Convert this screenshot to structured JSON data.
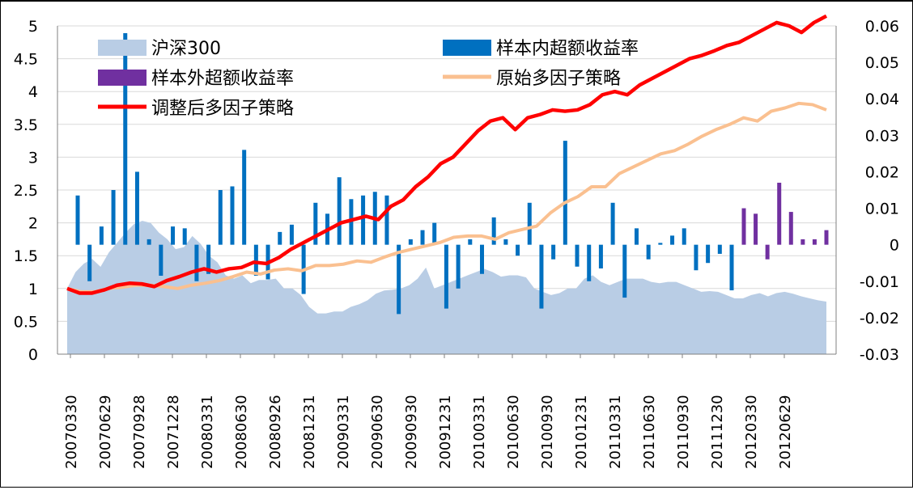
{
  "chart_data": {
    "type": "combo",
    "title": "",
    "xlabel": "",
    "ylabel": "",
    "y_left": {
      "min": 0,
      "max": 5,
      "step": 0.5,
      "ticks": [
        "0",
        "0.5",
        "1",
        "1.5",
        "2",
        "2.5",
        "3",
        "3.5",
        "4",
        "4.5",
        "5"
      ]
    },
    "y_right": {
      "min": -0.03,
      "max": 0.06,
      "step": 0.01,
      "ticks": [
        "-0.03",
        "-0.02",
        "-0.01",
        "0",
        "0.01",
        "0.02",
        "0.03",
        "0.04",
        "0.05",
        "0.06"
      ]
    },
    "grid": "horizontal",
    "x_tick_labels": [
      "20070330",
      "20070629",
      "20070928",
      "20071228",
      "20080331",
      "20080630",
      "20080926",
      "20081231",
      "20090331",
      "20090630",
      "20090930",
      "20091231",
      "20100331",
      "20100630",
      "20100930",
      "20101231",
      "20110331",
      "20110630",
      "20110930",
      "20111230",
      "20120330",
      "20120629"
    ],
    "legend": {
      "placement": "top-left",
      "items": [
        {
          "label": "沪深300",
          "type": "area",
          "color": "#b9cde5"
        },
        {
          "label": "样本内超额收益率",
          "type": "bar",
          "color": "#0070c0"
        },
        {
          "label": "样本外超额收益率",
          "type": "bar",
          "color": "#7030a0"
        },
        {
          "label": "原始多因子策略",
          "type": "line",
          "color": "#fac090"
        },
        {
          "label": "调整后多因子策略",
          "type": "line",
          "color": "#ff0000"
        }
      ]
    },
    "series": [
      {
        "name": "沪深300",
        "axis": "left",
        "type": "area",
        "color": "#b9cde5",
        "values": [
          1.0,
          1.25,
          1.38,
          1.45,
          1.33,
          1.55,
          1.7,
          1.85,
          1.98,
          2.03,
          2.0,
          1.85,
          1.75,
          1.6,
          1.63,
          1.8,
          1.68,
          1.5,
          1.4,
          1.2,
          1.15,
          1.2,
          1.08,
          1.13,
          1.13,
          1.15,
          1.0,
          1.0,
          0.9,
          0.72,
          0.62,
          0.62,
          0.65,
          0.65,
          0.72,
          0.76,
          0.82,
          0.92,
          0.97,
          0.98,
          1.0,
          1.05,
          1.15,
          1.32,
          1.0,
          1.05,
          1.1,
          1.15,
          1.2,
          1.25,
          1.3,
          1.25,
          1.18,
          1.2,
          1.2,
          1.17,
          1.0,
          0.95,
          0.9,
          0.93,
          1.0,
          1.0,
          1.15,
          1.2,
          1.1,
          1.05,
          1.1,
          1.15,
          1.15,
          1.15,
          1.1,
          1.08,
          1.1,
          1.1,
          1.05,
          1.0,
          0.95,
          0.96,
          0.95,
          0.9,
          0.85,
          0.85,
          0.9,
          0.93,
          0.88,
          0.93,
          0.95,
          0.92,
          0.88,
          0.85,
          0.82,
          0.8
        ]
      },
      {
        "name": "样本内超额收益率",
        "axis": "right",
        "type": "bar",
        "color": "#0070c0",
        "values": [
          0.0135,
          -0.01,
          0.005,
          0.015,
          0.058,
          0.02,
          0.0015,
          -0.0085,
          0.005,
          0.0045,
          -0.01,
          -0.008,
          0.015,
          0.016,
          0.026,
          -0.0085,
          -0.0095,
          0.0035,
          0.0055,
          -0.0135,
          0.0115,
          0.0085,
          0.0185,
          0.0125,
          0.0135,
          0.0145,
          0.0135,
          -0.019,
          0.0015,
          0.004,
          0.006,
          -0.0175,
          -0.012,
          0.0015,
          -0.008,
          0.0075,
          0.0015,
          -0.003,
          0.0115,
          -0.0175,
          -0.004,
          0.0285,
          -0.006,
          -0.01,
          -0.0065,
          0.0115,
          -0.0145,
          0.0045,
          -0.004,
          0.0005,
          0.0025,
          0.0045,
          -0.007,
          -0.005,
          -0.0025,
          -0.0125
        ]
      },
      {
        "name": "样本外超额收益率",
        "axis": "right",
        "type": "bar",
        "color": "#7030a0",
        "values": [
          0.01,
          0.0085,
          -0.004,
          0.017,
          0.009,
          0.0015,
          0.0015,
          0.004
        ]
      },
      {
        "name": "原始多因子策略",
        "axis": "left",
        "type": "line",
        "color": "#fac090",
        "values": [
          1.0,
          0.95,
          0.95,
          1.0,
          1.02,
          1.05,
          1.05,
          1.03,
          1.0,
          1.05,
          1.08,
          1.12,
          1.18,
          1.25,
          1.22,
          1.28,
          1.3,
          1.27,
          1.35,
          1.35,
          1.37,
          1.42,
          1.4,
          1.48,
          1.55,
          1.6,
          1.65,
          1.7,
          1.78,
          1.8,
          1.8,
          1.75,
          1.85,
          1.9,
          1.95,
          2.15,
          2.3,
          2.4,
          2.55,
          2.55,
          2.75,
          2.85,
          2.95,
          3.05,
          3.1,
          3.2,
          3.32,
          3.42,
          3.5,
          3.6,
          3.55,
          3.7,
          3.75,
          3.82,
          3.8,
          3.72
        ]
      },
      {
        "name": "调整后多因子策略",
        "axis": "left",
        "type": "line",
        "color": "#ff0000",
        "values": [
          1.0,
          0.93,
          0.93,
          0.98,
          1.05,
          1.08,
          1.07,
          1.03,
          1.12,
          1.18,
          1.25,
          1.3,
          1.25,
          1.3,
          1.32,
          1.4,
          1.38,
          1.47,
          1.6,
          1.7,
          1.8,
          1.9,
          2.0,
          2.05,
          2.1,
          2.05,
          2.25,
          2.35,
          2.55,
          2.7,
          2.9,
          3.0,
          3.2,
          3.4,
          3.55,
          3.6,
          3.42,
          3.6,
          3.65,
          3.72,
          3.7,
          3.72,
          3.8,
          3.95,
          4.0,
          3.95,
          4.1,
          4.2,
          4.3,
          4.4,
          4.5,
          4.55,
          4.62,
          4.7,
          4.75,
          4.85,
          4.95,
          5.05,
          5.0,
          4.9,
          5.05,
          5.15
        ]
      }
    ]
  }
}
